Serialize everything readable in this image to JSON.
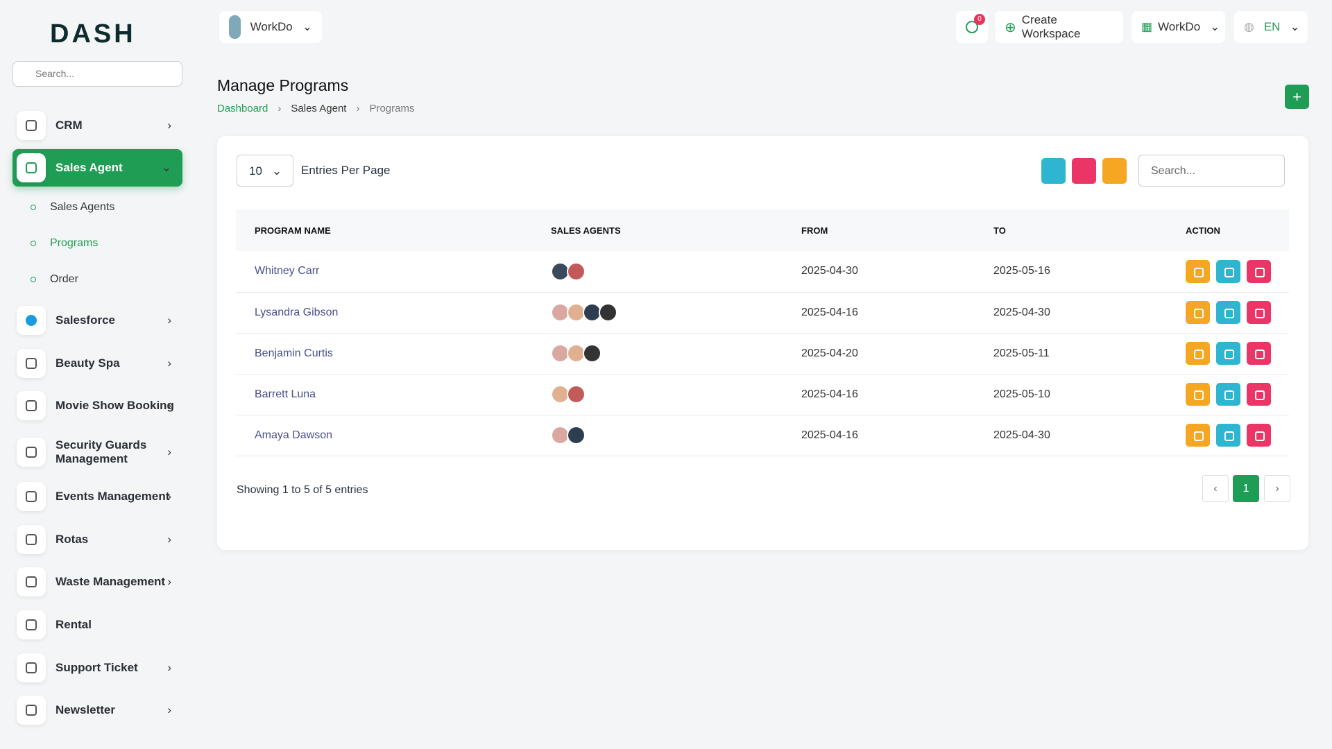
{
  "sidebar": {
    "logo": "DASH",
    "search_placeholder": "Search...",
    "items": [
      {
        "label": "CRM"
      },
      {
        "label": "Sales Agent",
        "children": [
          "Sales Agents",
          "Programs",
          "Order"
        ]
      },
      {
        "label": "Salesforce"
      },
      {
        "label": "Beauty Spa"
      },
      {
        "label": "Movie Show Booking"
      },
      {
        "label": "Security Guards Management"
      },
      {
        "label": "Events Management"
      },
      {
        "label": "Rotas"
      },
      {
        "label": "Waste Management"
      },
      {
        "label": "Rental"
      },
      {
        "label": "Support Ticket"
      },
      {
        "label": "Newsletter"
      }
    ]
  },
  "header": {
    "workspace": "WorkDo",
    "notification_count": 0,
    "create_workspace": "Create Workspace",
    "workspace_menu": "WorkDo",
    "language": "EN"
  },
  "page": {
    "title": "Manage Programs",
    "breadcrumb": [
      "Dashboard",
      "Sales Agent",
      "Programs"
    ]
  },
  "table": {
    "page_size": 10,
    "entries_label": "Entries Per Page",
    "search_placeholder": "Search...",
    "columns": [
      "PROGRAM NAME",
      "SALES AGENTS",
      "FROM",
      "TO",
      "ACTION"
    ],
    "rows": [
      {
        "name": "Whitney Carr",
        "from": "2025-04-30",
        "to": "2025-05-16"
      },
      {
        "name": "Lysandra Gibson",
        "from": "2025-04-16",
        "to": "2025-04-30"
      },
      {
        "name": "Benjamin Curtis",
        "from": "2025-04-20",
        "to": "2025-05-11"
      },
      {
        "name": "Barrett Luna",
        "from": "2025-04-16",
        "to": "2025-05-10"
      },
      {
        "name": "Amaya Dawson",
        "from": "2025-04-16",
        "to": "2025-04-30"
      }
    ],
    "summary": "Showing 1 to 5 of 5 entries",
    "current_page": 1
  }
}
